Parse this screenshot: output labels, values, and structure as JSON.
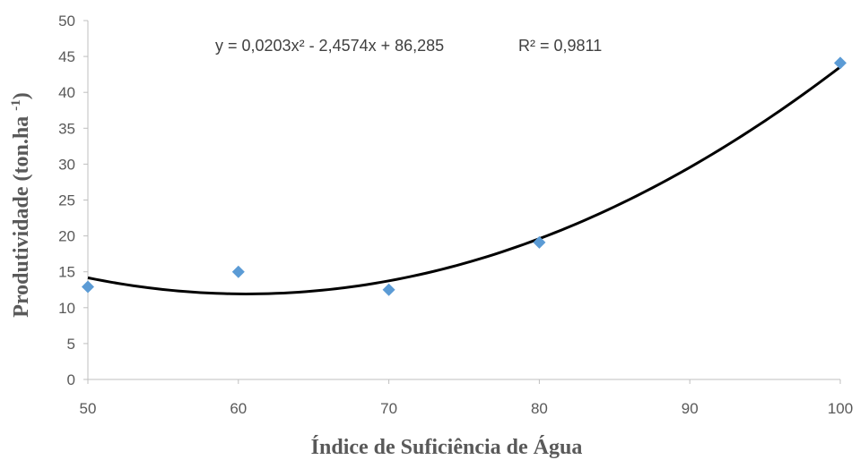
{
  "chart_data": {
    "type": "scatter",
    "xlabel": "Índice de Suficiência de Água",
    "ylabel": "Produtividade  (ton.ha -1)",
    "ylabel_main": "Produtividade  (ton.ha ",
    "ylabel_sub": "-1",
    "ylabel_close": ")",
    "xlim": [
      50,
      100
    ],
    "ylim": [
      0,
      50
    ],
    "x_ticks": [
      50,
      60,
      70,
      80,
      90,
      100
    ],
    "x_tick_labels": [
      "50",
      "60",
      "70",
      "80",
      "90",
      "100"
    ],
    "y_ticks": [
      0,
      5,
      10,
      15,
      20,
      25,
      30,
      35,
      40,
      45,
      50
    ],
    "y_tick_labels": [
      "0",
      "5",
      "10",
      "15",
      "20",
      "25",
      "30",
      "35",
      "40",
      "45",
      "50"
    ],
    "grid": false,
    "series": [
      {
        "points": [
          {
            "x": 50,
            "y": 12.9
          },
          {
            "x": 60,
            "y": 15.0
          },
          {
            "x": 70,
            "y": 12.5
          },
          {
            "x": 80,
            "y": 19.1
          },
          {
            "x": 100,
            "y": 44.1
          }
        ]
      }
    ],
    "trendline": {
      "type": "polynomial",
      "coefficients": [
        0.0203,
        -2.4574,
        86.285
      ],
      "equation": "y = 0,0203x² - 2,4574x + 86,285",
      "r_squared": "R² = 0,9811"
    },
    "colors": {
      "marker": "#5b9bd5",
      "trendline": "#000000",
      "axis": "#bfbfbf",
      "text": "#595959"
    }
  }
}
